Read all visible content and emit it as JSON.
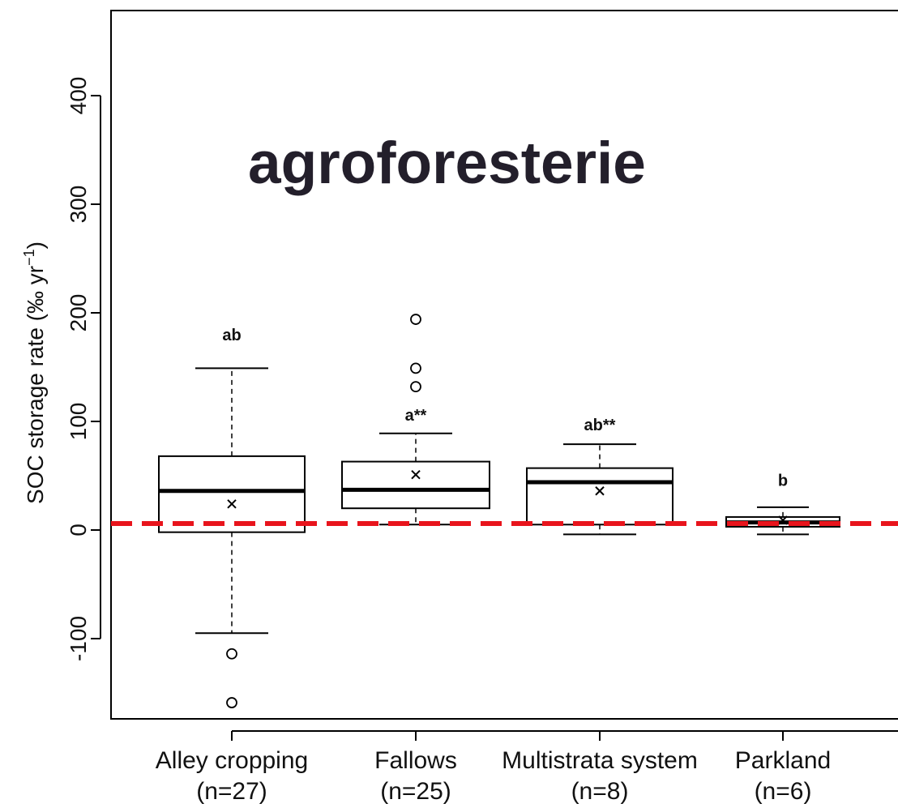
{
  "overlay_title": "agroforesterie",
  "chart_data": {
    "type": "box",
    "ylabel": "SOC storage rate (‰ yr",
    "ylabel_sup": "−1",
    "ylabel_close": ")",
    "ylim": [
      -170,
      475
    ],
    "yticks": [
      -100,
      0,
      100,
      200,
      300,
      400
    ],
    "yticklabels": [
      "-100",
      "0",
      "100",
      "200",
      "300",
      "400"
    ],
    "reference_line": {
      "y": 6,
      "color": "#e8141c",
      "style": "dashed"
    },
    "categories": [
      {
        "name": "Alley cropping",
        "n_label": "(n=27)",
        "whisker_low": -95,
        "q1": -2,
        "median": 36,
        "q3": 68,
        "whisker_high": 149,
        "mean": 24,
        "outliers": [
          -114,
          -159
        ],
        "significance": "ab",
        "sig_y": 180
      },
      {
        "name": "Fallows",
        "n_label": "(n=25)",
        "whisker_low": 5,
        "q1": 20,
        "median": 37,
        "q3": 63,
        "whisker_high": 89,
        "mean": 51,
        "outliers": [
          194,
          149,
          132
        ],
        "significance": "a**",
        "sig_y": 106
      },
      {
        "name": "Multistrata system",
        "n_label": "(n=8)",
        "whisker_low": -4,
        "q1": 5,
        "median": 44,
        "q3": 57,
        "whisker_high": 79,
        "mean": 36,
        "outliers": [],
        "significance": "ab**",
        "sig_y": 97
      },
      {
        "name": "Parkland",
        "n_label": "(n=6)",
        "whisker_low": -4,
        "q1": 3,
        "median": 7,
        "q3": 12,
        "whisker_high": 21,
        "mean": 9,
        "outliers": [],
        "significance": "b",
        "sig_y": 46
      }
    ]
  }
}
